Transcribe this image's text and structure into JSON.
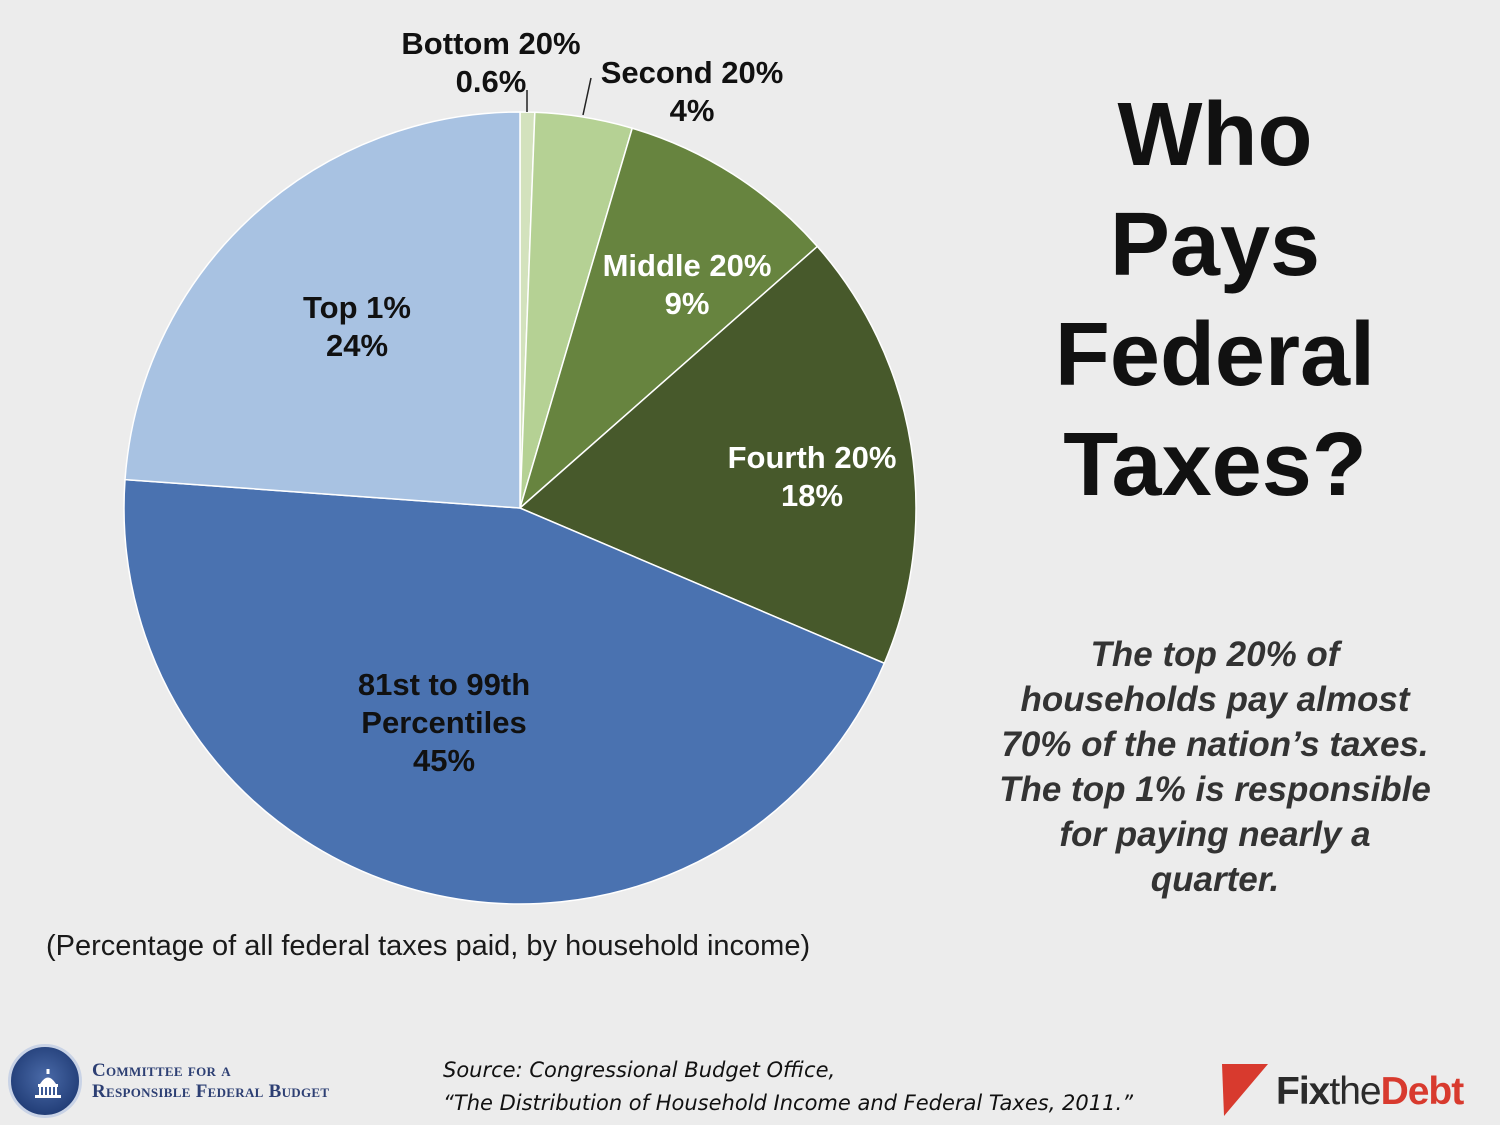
{
  "title_lines": [
    "Who",
    "Pays",
    "Federal",
    "Taxes?"
  ],
  "summary_lines": [
    "The top 20% of",
    "households pay almost",
    "70% of the nation’s taxes.",
    "The top 1% is responsible",
    "for paying nearly a",
    "quarter."
  ],
  "caption": "(Percentage of all federal taxes paid, by household income)",
  "source_lines": [
    "Source: Congressional Budget Office,",
    "“The Distribution of Household Income and Federal Taxes, 2011.”"
  ],
  "org_lines": [
    "Committee for a",
    "Responsible Federal Budget"
  ],
  "brand": {
    "fix": "Fix",
    "the": "the",
    "debt": "Debt"
  },
  "colors": {
    "background": "#ececec",
    "bottom_20": "#d3e2bd",
    "second_20": "#b5d194",
    "middle_20": "#67843f",
    "fourth_20": "#47592b",
    "p81_99": "#4a72b0",
    "top_1": "#a8c2e2",
    "brand_red": "#d83a2e"
  },
  "chart_data": {
    "type": "pie",
    "title": "",
    "series": [
      {
        "values": [
          0.6,
          4,
          9,
          18,
          45,
          24
        ],
        "labels": [
          [
            "Bottom 20%",
            "0.6%"
          ],
          [
            "Second 20%",
            "4%"
          ],
          [
            "Middle 20%",
            "9%"
          ],
          [
            "Fourth 20%",
            "18%"
          ],
          [
            "81st to 99th",
            "Percentiles",
            "45%"
          ],
          [
            "Top 1%",
            "24%"
          ]
        ],
        "categories": [
          "Bottom 20%",
          "Second 20%",
          "Middle 20%",
          "Fourth 20%",
          "81st to 99th Percentiles",
          "Top 1%"
        ],
        "colors": [
          "#d3e2bd",
          "#b5d194",
          "#67843f",
          "#47592b",
          "#4a72b0",
          "#a8c2e2"
        ],
        "label_colors": [
          "#111111",
          "#111111",
          "#ffffff",
          "#ffffff",
          "#111111",
          "#111111"
        ],
        "label_placement": [
          "outside",
          "outside",
          "inside",
          "inside",
          "inside",
          "inside"
        ]
      }
    ],
    "start_angle": "12 o'clock",
    "direction": "clockwise",
    "legend": "none"
  }
}
